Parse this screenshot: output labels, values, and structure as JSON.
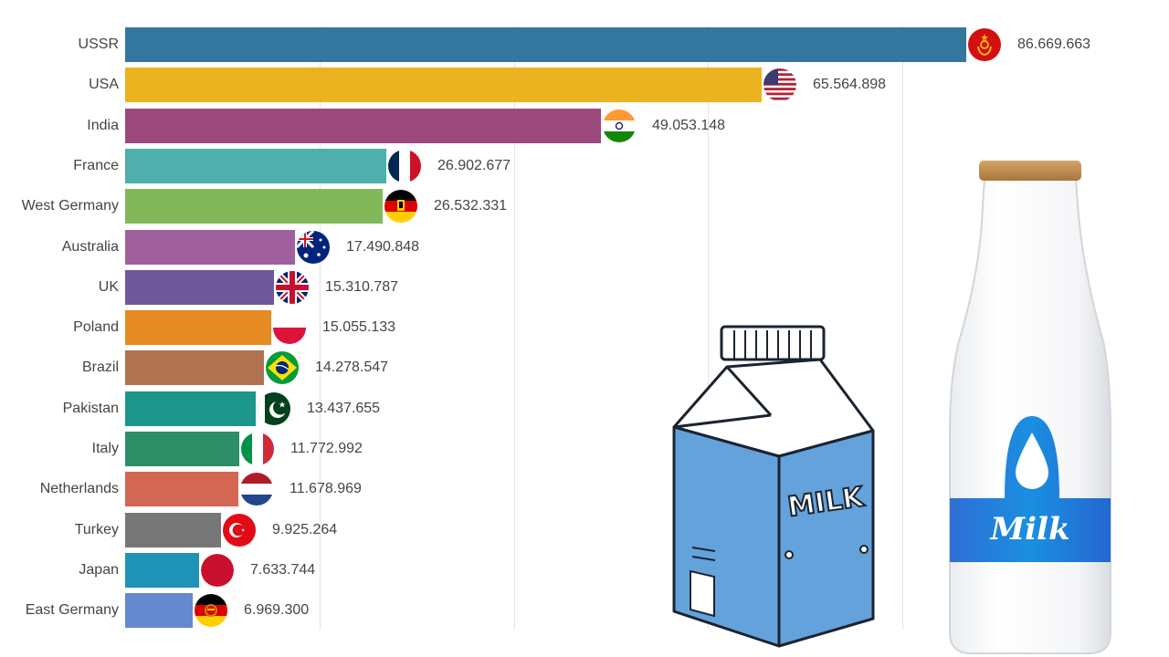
{
  "chart_data": {
    "type": "bar",
    "orientation": "horizontal",
    "title": "",
    "xlabel": "",
    "ylabel": "",
    "xlim": [
      0,
      90000000
    ],
    "gridlines_at": [
      20000000,
      40000000,
      60000000,
      80000000
    ],
    "grid": true,
    "legend": "none",
    "categories": [
      "USSR",
      "USA",
      "India",
      "France",
      "West Germany",
      "Australia",
      "UK",
      "Poland",
      "Brazil",
      "Pakistan",
      "Italy",
      "Netherlands",
      "Turkey",
      "Japan",
      "East Germany"
    ],
    "values": [
      86669663,
      65564898,
      49053148,
      26902677,
      26532331,
      17490848,
      15310787,
      15055133,
      14278547,
      13437655,
      11772992,
      11678969,
      9925264,
      7633744,
      6969300
    ],
    "value_labels": [
      "86.669.663",
      "65.564.898",
      "49.053.148",
      "26.902.677",
      "26.532.331",
      "17.490.848",
      "15.310.787",
      "15.055.133",
      "14.278.547",
      "13.437.655",
      "11.772.992",
      "11.678.969",
      "9.925.264",
      "7.633.744",
      "6.969.300"
    ],
    "colors": [
      "#34779e",
      "#ecb320",
      "#9c4a7e",
      "#4eafac",
      "#83b85a",
      "#a0609d",
      "#6f579b",
      "#e58b21",
      "#b07250",
      "#1d968c",
      "#2c8f67",
      "#d36753",
      "#777777",
      "#1f93b5",
      "#6588cf"
    ],
    "flags": [
      "ussr-flag",
      "usa-flag",
      "india-flag",
      "france-flag",
      "west-germany-flag",
      "australia-flag",
      "uk-flag",
      "poland-flag",
      "brazil-flag",
      "pakistan-flag",
      "italy-flag",
      "netherlands-flag",
      "turkey-flag",
      "japan-flag",
      "east-germany-flag"
    ]
  },
  "illustrations": {
    "carton_text": "MILK",
    "bottle_text": "Milk"
  }
}
